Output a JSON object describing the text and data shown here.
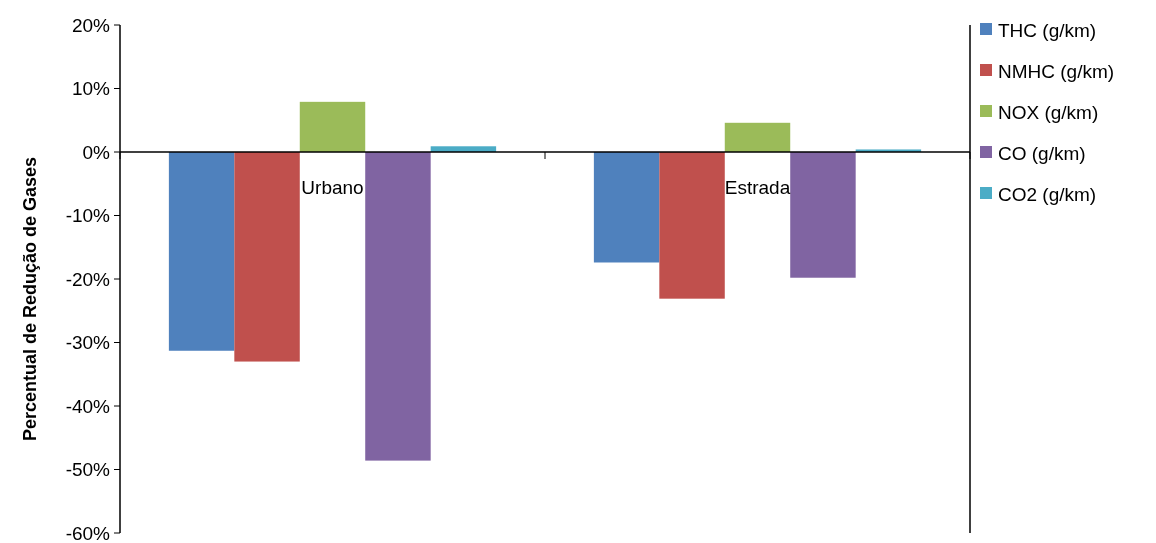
{
  "chart_data": {
    "type": "bar",
    "ylabel": "Percentual de Redução de Gases",
    "categories": [
      "Urbano",
      "Estrada"
    ],
    "series": [
      {
        "name": "THC (g/km)",
        "color": "#4f81bd",
        "values": [
          -31.3,
          -17.4
        ]
      },
      {
        "name": "NMHC (g/km)",
        "color": "#c0504d",
        "values": [
          -33.0,
          -23.1
        ]
      },
      {
        "name": "NOX (g/km)",
        "color": "#9bbb59",
        "values": [
          7.9,
          4.6
        ]
      },
      {
        "name": "CO (g/km)",
        "color": "#8064a2",
        "values": [
          -48.6,
          -19.8
        ]
      },
      {
        "name": "CO2 (g/km)",
        "color": "#4bacc6",
        "values": [
          0.9,
          0.4
        ]
      }
    ],
    "ylim": [
      -60,
      20
    ],
    "yticks": [
      {
        "value": -60,
        "label": "-60%"
      },
      {
        "value": -50,
        "label": "-50%"
      },
      {
        "value": -40,
        "label": "-40%"
      },
      {
        "value": -30,
        "label": "-30%"
      },
      {
        "value": -20,
        "label": "-20%"
      },
      {
        "value": -10,
        "label": "-10%"
      },
      {
        "value": 0,
        "label": "0%"
      },
      {
        "value": 10,
        "label": "10%"
      },
      {
        "value": 20,
        "label": "20%"
      }
    ],
    "grid": false,
    "legend": "right"
  }
}
